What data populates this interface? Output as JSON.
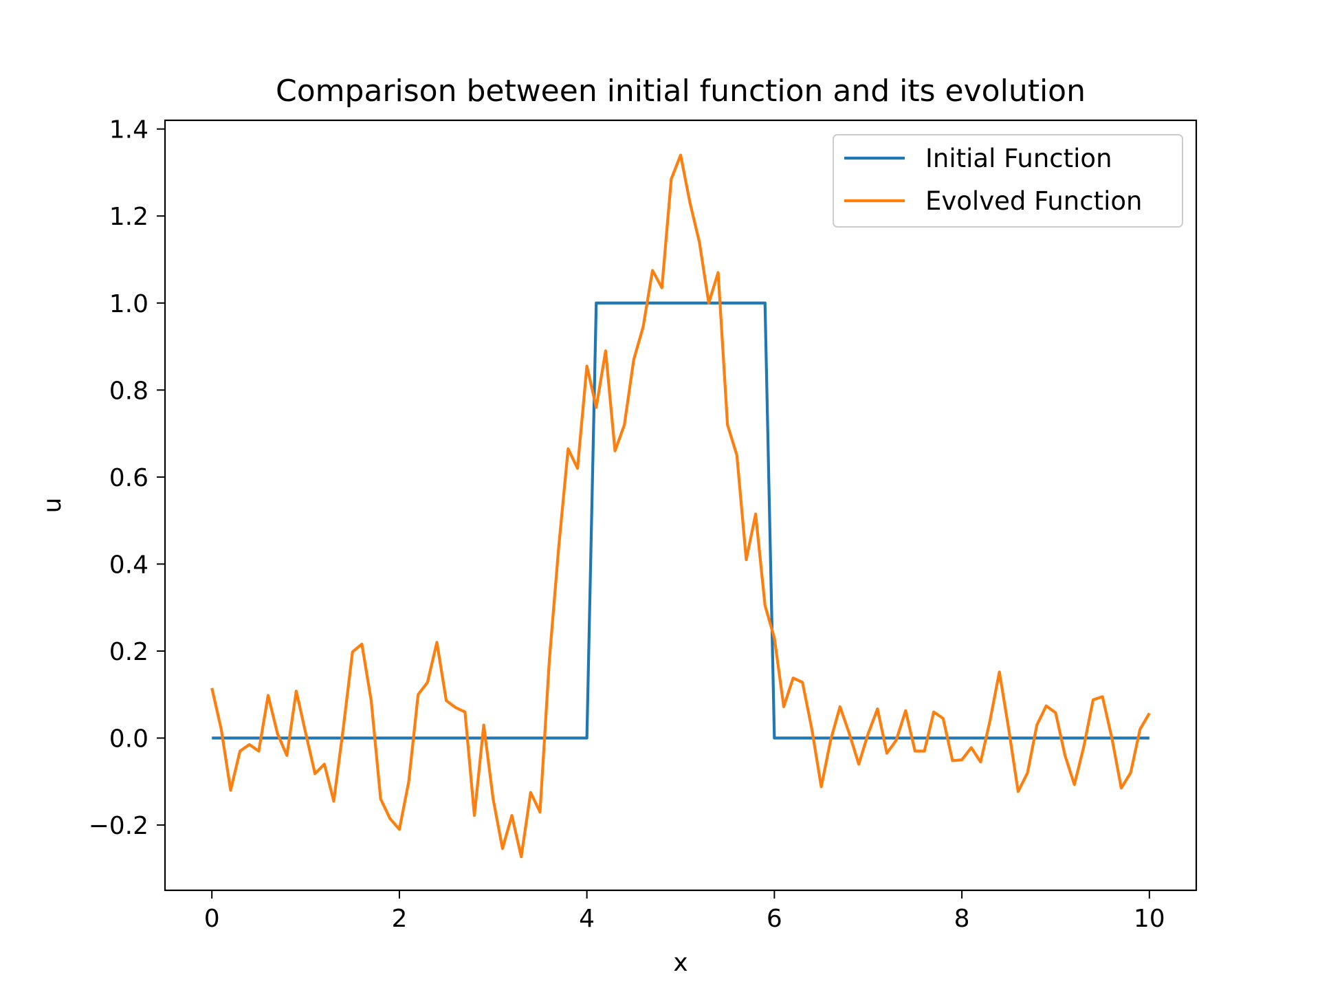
{
  "chart_data": {
    "type": "line",
    "title": "Comparison between initial function and its evolution",
    "xlabel": "x",
    "ylabel": "u",
    "xlim": [
      -0.5,
      10.5
    ],
    "ylim": [
      -0.35,
      1.42
    ],
    "xticks": [
      0,
      2,
      4,
      6,
      8,
      10
    ],
    "yticks": [
      -0.2,
      0.0,
      0.2,
      0.4,
      0.6,
      0.8,
      1.0,
      1.2,
      1.4
    ],
    "xtick_labels": [
      "0",
      "2",
      "4",
      "6",
      "8",
      "10"
    ],
    "ytick_labels": [
      "−0.2",
      "0.0",
      "0.2",
      "0.4",
      "0.6",
      "0.8",
      "1.0",
      "1.2",
      "1.4"
    ],
    "grid": false,
    "legend_position": "top-right",
    "series": [
      {
        "name": "Initial Function",
        "color": "#1f77b4",
        "x": [
          0,
          4.0,
          4.1,
          5.9,
          6.0,
          10
        ],
        "y": [
          0,
          0,
          1,
          1,
          0,
          0
        ]
      },
      {
        "name": "Evolved Function",
        "color": "#ff7f0e",
        "x": [
          0.0,
          0.1,
          0.2,
          0.3,
          0.4,
          0.5,
          0.6,
          0.7,
          0.8,
          0.9,
          1.0,
          1.1,
          1.2,
          1.3,
          1.4,
          1.5,
          1.6,
          1.7,
          1.8,
          1.9,
          2.0,
          2.1,
          2.2,
          2.3,
          2.4,
          2.5,
          2.6,
          2.7,
          2.8,
          2.9,
          3.0,
          3.1,
          3.2,
          3.3,
          3.4,
          3.5,
          3.6,
          3.7,
          3.8,
          3.9,
          4.0,
          4.1,
          4.2,
          4.3,
          4.4,
          4.5,
          4.6,
          4.7,
          4.8,
          4.9,
          5.0,
          5.1,
          5.2,
          5.3,
          5.4,
          5.5,
          5.6,
          5.7,
          5.8,
          5.9,
          6.0,
          6.1,
          6.2,
          6.3,
          6.4,
          6.5,
          6.6,
          6.7,
          6.8,
          6.9,
          7.0,
          7.1,
          7.2,
          7.3,
          7.4,
          7.5,
          7.6,
          7.7,
          7.8,
          7.9,
          8.0,
          8.1,
          8.2,
          8.3,
          8.4,
          8.5,
          8.6,
          8.7,
          8.8,
          8.9,
          9.0,
          9.1,
          9.2,
          9.3,
          9.4,
          9.5,
          9.6,
          9.7,
          9.8,
          9.9,
          10.0
        ],
        "y": [
          0.115,
          0.02,
          -0.12,
          -0.03,
          -0.015,
          -0.03,
          0.098,
          0.01,
          -0.04,
          0.108,
          0.012,
          -0.082,
          -0.06,
          -0.145,
          0.02,
          0.198,
          0.216,
          0.085,
          -0.14,
          -0.185,
          -0.21,
          -0.1,
          0.1,
          0.128,
          0.22,
          0.086,
          0.07,
          0.06,
          -0.178,
          0.03,
          -0.14,
          -0.254,
          -0.178,
          -0.273,
          -0.125,
          -0.17,
          0.18,
          0.44,
          0.665,
          0.62,
          0.855,
          0.76,
          0.89,
          0.66,
          0.72,
          0.87,
          0.945,
          1.075,
          1.035,
          1.285,
          1.34,
          1.23,
          1.14,
          1.0,
          1.07,
          0.72,
          0.65,
          0.41,
          0.515,
          0.305,
          0.23,
          0.072,
          0.138,
          0.128,
          0.02,
          -0.112,
          -0.005,
          0.072,
          0.01,
          -0.06,
          0.01,
          0.067,
          -0.035,
          -0.005,
          0.063,
          -0.03,
          -0.03,
          0.06,
          0.045,
          -0.052,
          -0.05,
          -0.022,
          -0.055,
          0.04,
          0.152,
          0.02,
          -0.123,
          -0.08,
          0.03,
          0.074,
          0.058,
          -0.04,
          -0.107,
          -0.02,
          0.088,
          0.095,
          0.0,
          -0.115,
          -0.08,
          0.02,
          0.057
        ]
      }
    ]
  }
}
